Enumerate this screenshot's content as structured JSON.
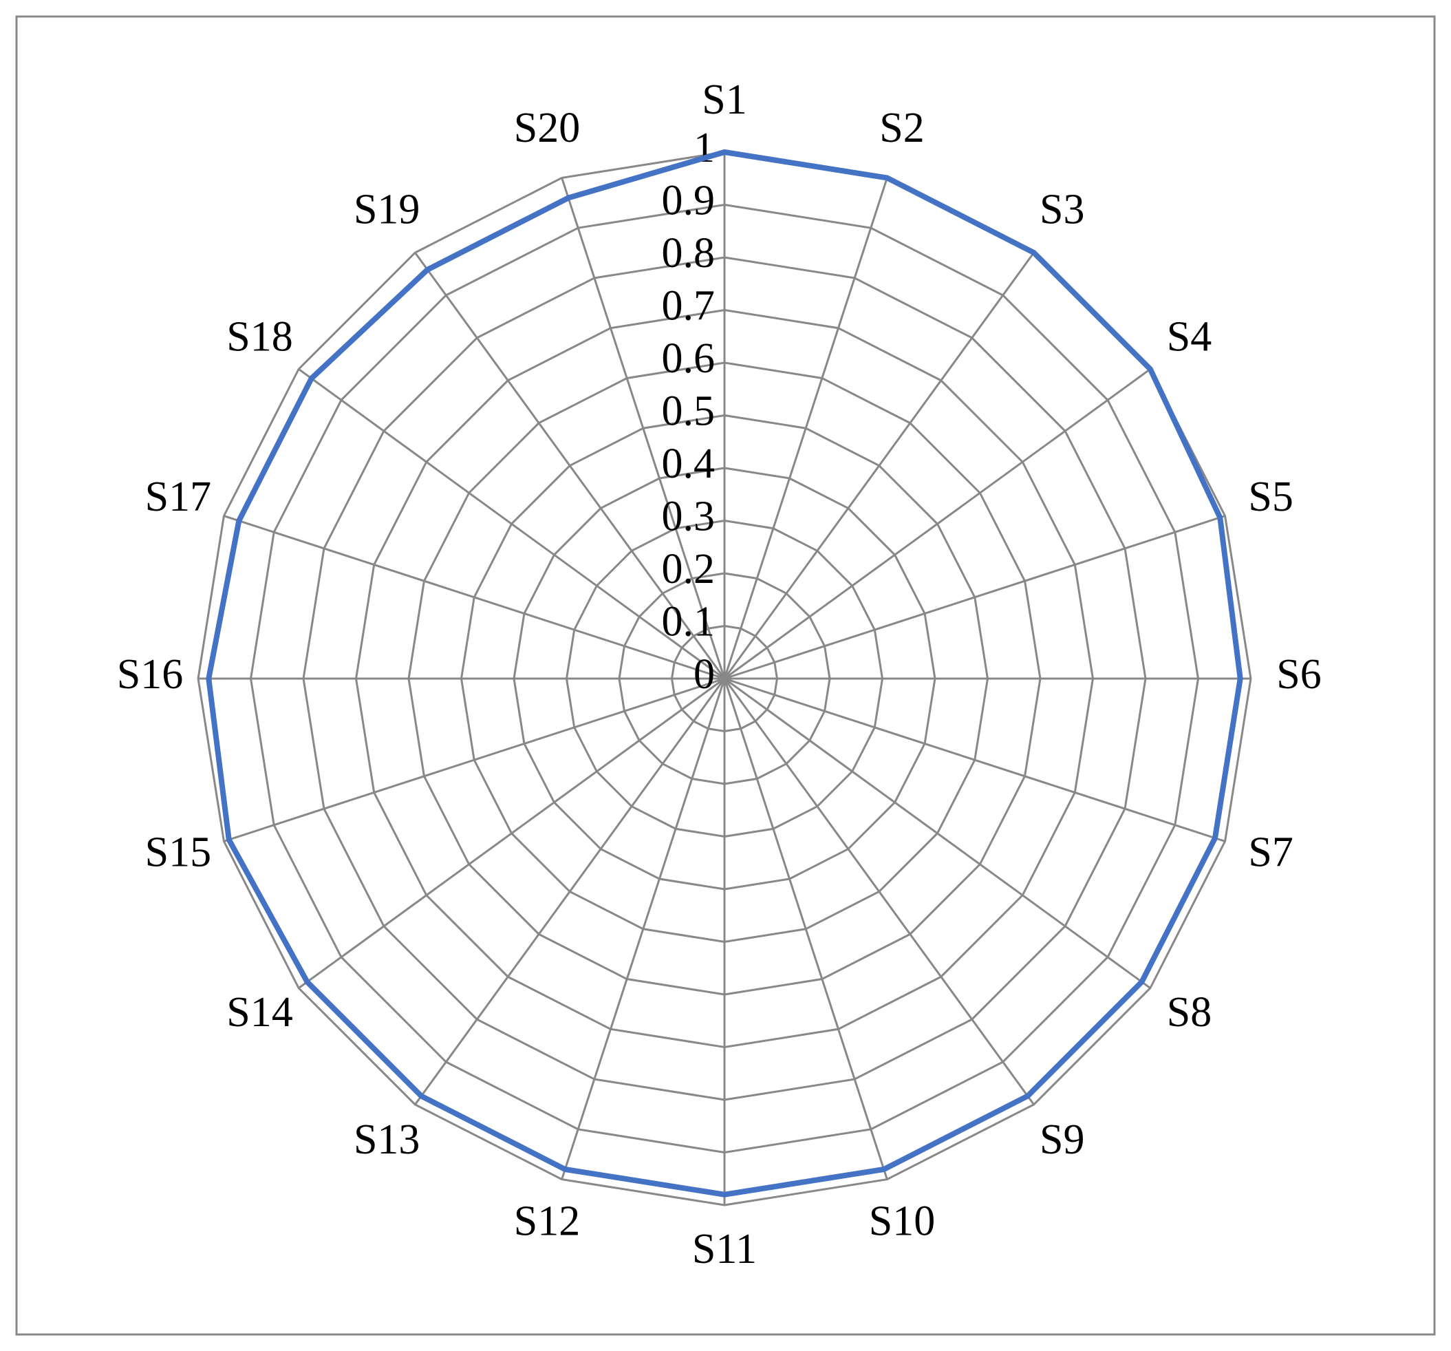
{
  "chart_data": {
    "type": "radar",
    "categories": [
      "S1",
      "S2",
      "S3",
      "S4",
      "S5",
      "S6",
      "S7",
      "S8",
      "S9",
      "S10",
      "S11",
      "S12",
      "S13",
      "S14",
      "S15",
      "S16",
      "S17",
      "S18",
      "S19",
      "S20"
    ],
    "series": [
      {
        "color": "#4472c4",
        "values": [
          1,
          1,
          1,
          1,
          0.99,
          0.98,
          0.98,
          0.98,
          0.98,
          0.98,
          0.98,
          0.98,
          0.98,
          0.98,
          0.99,
          0.98,
          0.97,
          0.97,
          0.96,
          0.96
        ]
      }
    ],
    "ylim": [
      0,
      1
    ],
    "yticks": [
      0,
      0.1,
      0.2,
      0.3,
      0.4,
      0.5,
      0.6,
      0.7,
      0.8,
      0.9,
      1
    ],
    "grid": true
  }
}
